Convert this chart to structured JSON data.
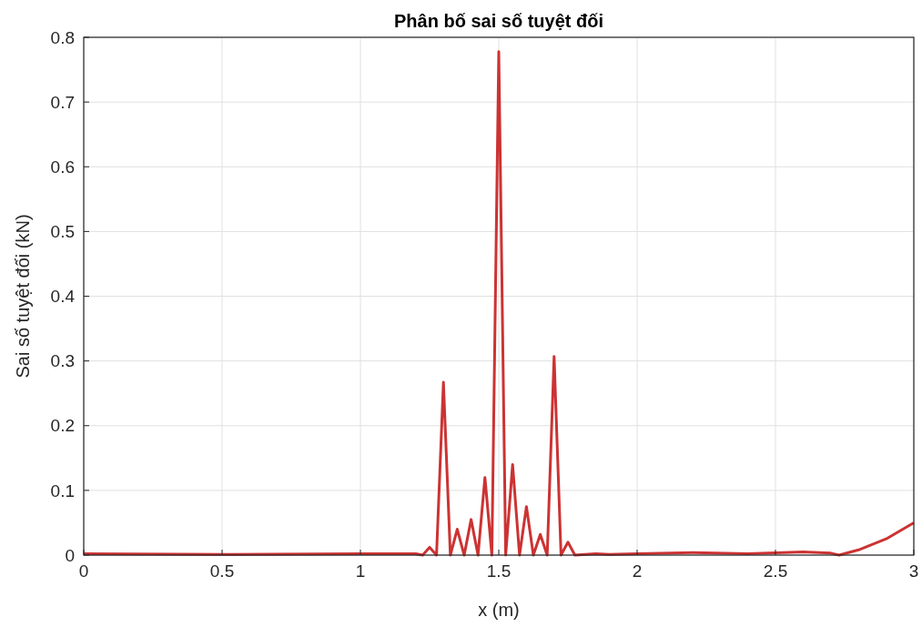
{
  "chart_data": {
    "type": "line",
    "title": "Phân bố sai số tuyệt đối",
    "xlabel": "x (m)",
    "ylabel": "Sai số tuyệt đối (kN)",
    "xlim": [
      0,
      3
    ],
    "ylim": [
      0,
      0.8
    ],
    "xticks": [
      0,
      0.5,
      1,
      1.5,
      2,
      2.5,
      3
    ],
    "yticks": [
      0,
      0.1,
      0.2,
      0.3,
      0.4,
      0.5,
      0.6,
      0.7,
      0.8
    ],
    "grid": true,
    "marker": "none",
    "line_style": "solid",
    "series": [
      {
        "color": "#cc3333",
        "x": [
          0,
          0.5,
          1,
          1.2,
          1.225,
          1.25,
          1.275,
          1.3,
          1.325,
          1.35,
          1.375,
          1.4,
          1.425,
          1.45,
          1.475,
          1.5,
          1.525,
          1.55,
          1.575,
          1.6,
          1.625,
          1.65,
          1.675,
          1.7,
          1.725,
          1.75,
          1.775,
          1.85,
          1.9,
          2,
          2.2,
          2.4,
          2.6,
          2.7,
          2.73,
          2.8,
          2.9,
          3
        ],
        "values": [
          0.002,
          0.001,
          0.002,
          0.002,
          0,
          0.012,
          0,
          0.267,
          0,
          0.04,
          0,
          0.055,
          0,
          0.12,
          0,
          0.778,
          0,
          0.14,
          0,
          0.075,
          0,
          0.032,
          0,
          0.307,
          0,
          0.02,
          0,
          0.002,
          0.001,
          0.002,
          0.004,
          0.002,
          0.005,
          0.003,
          0,
          0.008,
          0.025,
          0.05
        ]
      }
    ]
  }
}
